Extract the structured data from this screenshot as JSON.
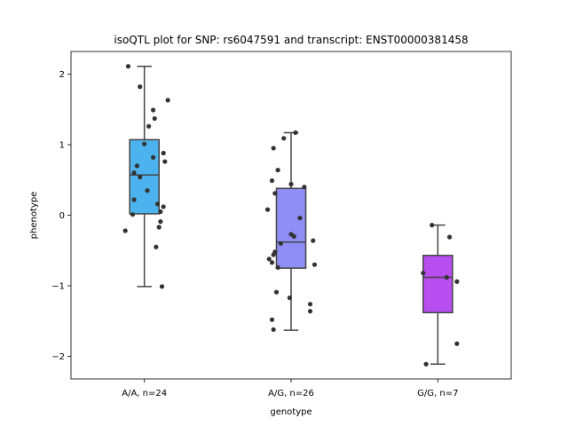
{
  "chart_data": {
    "type": "box",
    "title": "isoQTL plot for SNP: rs6047591 and transcript: ENST00000381458",
    "xlabel": "genotype",
    "ylabel": "phenotype",
    "ylim": [
      -2.32,
      2.32
    ],
    "yticks": [
      2,
      1,
      0,
      -1,
      -2
    ],
    "ytick_labels": [
      "2",
      "1",
      "0",
      "−1",
      "−2"
    ],
    "grid": false,
    "categories": [
      "A/A, n=24",
      "A/G, n=26",
      "G/G, n=7"
    ],
    "boxes": [
      {
        "category": "A/A, n=24",
        "color": "#4db3ee",
        "whisker_low": -1.01,
        "q1": 0.02,
        "median": 0.57,
        "q3": 1.07,
        "whisker_high": 2.11,
        "points": [
          2.11,
          1.82,
          1.63,
          1.49,
          1.37,
          1.26,
          1.01,
          0.88,
          0.82,
          0.76,
          0.7,
          0.6,
          0.54,
          0.35,
          0.22,
          0.16,
          0.12,
          0.05,
          0.01,
          -0.09,
          -0.17,
          -0.22,
          -0.45,
          -1.01
        ],
        "jitter": [
          -0.11,
          -0.03,
          0.16,
          0.06,
          0.07,
          0.03,
          0.0,
          0.13,
          0.06,
          0.14,
          -0.05,
          -0.07,
          -0.03,
          0.02,
          -0.07,
          0.09,
          0.13,
          0.11,
          -0.08,
          0.11,
          0.1,
          -0.13,
          0.08,
          0.12
        ]
      },
      {
        "category": "A/G, n=26",
        "color": "#8e8ef5",
        "whisker_low": -1.63,
        "q1": -0.75,
        "median": -0.38,
        "q3": 0.38,
        "whisker_high": 1.17,
        "points": [
          1.17,
          1.09,
          0.95,
          0.64,
          0.49,
          0.44,
          0.4,
          0.31,
          0.08,
          -0.04,
          -0.27,
          -0.36,
          -0.4,
          -0.52,
          -0.56,
          -0.62,
          -0.67,
          -0.7,
          -0.74,
          -1.09,
          -1.17,
          -1.26,
          -1.36,
          -1.48,
          -1.62,
          -0.3
        ],
        "jitter": [
          0.03,
          -0.05,
          -0.12,
          -0.09,
          -0.13,
          0.0,
          0.09,
          -0.11,
          -0.16,
          0.06,
          0.0,
          0.15,
          -0.07,
          -0.11,
          -0.12,
          -0.15,
          -0.13,
          0.16,
          -0.09,
          -0.1,
          -0.01,
          0.13,
          0.13,
          -0.13,
          -0.12,
          0.02
        ]
      },
      {
        "category": "G/G, n=7",
        "color": "#b84df0",
        "whisker_low": -2.11,
        "q1": -1.38,
        "median": -0.88,
        "q3": -0.57,
        "whisker_high": -0.14,
        "points": [
          -0.14,
          -0.31,
          -0.82,
          -0.88,
          -0.94,
          -1.82,
          -2.11
        ],
        "jitter": [
          -0.04,
          0.08,
          -0.1,
          0.06,
          0.13,
          0.13,
          -0.08
        ]
      }
    ]
  }
}
